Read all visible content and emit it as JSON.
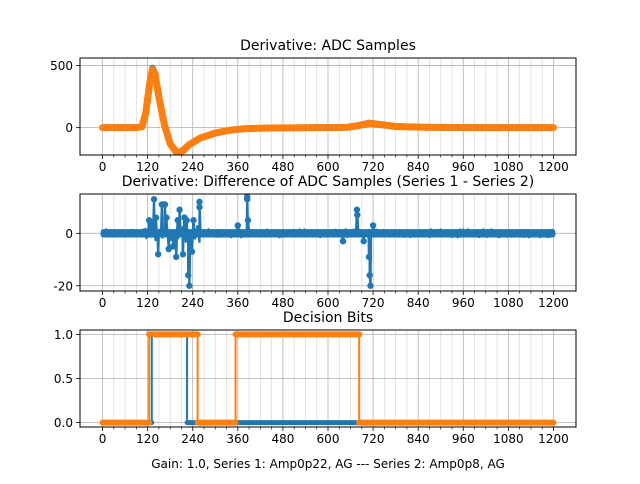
{
  "figure": {
    "xlabel": "Gain: 1.0, Series 1: Amp0p22, AG --- Series 2: Amp0p8, AG"
  },
  "colors": {
    "series1": "#1f77b4",
    "series2": "#ff7f0e",
    "grid_major": "#b0b0b0",
    "grid_minor": "#dcdcdc"
  },
  "chart_data": [
    {
      "type": "line",
      "title": "Derivative: ADC Samples",
      "xlabel": "",
      "ylabel": "",
      "xlim": [
        -60,
        1260
      ],
      "ylim": [
        -220,
        560
      ],
      "xticks": [
        0,
        120,
        240,
        360,
        480,
        600,
        720,
        840,
        960,
        1080,
        1200
      ],
      "xtick_labels": [
        "0",
        "120",
        "240",
        "360",
        "480",
        "600",
        "720",
        "840",
        "960",
        "1080",
        "1200"
      ],
      "xminor_step": 30,
      "yticks": [
        0,
        500
      ],
      "ytick_labels": [
        "0",
        "500"
      ],
      "grid": true,
      "series": [
        {
          "name": "Series 1",
          "color": "#1f77b4",
          "x": [
            0,
            90,
            105,
            115,
            125,
            133,
            140,
            150,
            165,
            180,
            195,
            205,
            215,
            230,
            260,
            300,
            340,
            380,
            450,
            560,
            650,
            680,
            710,
            740,
            780,
            850,
            1000,
            1200
          ],
          "y": [
            0,
            0,
            10,
            120,
            350,
            480,
            430,
            250,
            20,
            -130,
            -195,
            -205,
            -185,
            -140,
            -85,
            -45,
            -20,
            -8,
            -3,
            0,
            2,
            18,
            38,
            26,
            10,
            3,
            0,
            0
          ]
        },
        {
          "name": "Series 2",
          "color": "#ff7f0e",
          "x": [
            0,
            90,
            105,
            115,
            125,
            133,
            140,
            150,
            165,
            180,
            195,
            205,
            215,
            230,
            260,
            300,
            340,
            380,
            450,
            560,
            650,
            680,
            710,
            740,
            780,
            850,
            1000,
            1200
          ],
          "y": [
            0,
            0,
            8,
            115,
            345,
            470,
            425,
            245,
            18,
            -130,
            -190,
            -200,
            -182,
            -138,
            -83,
            -44,
            -20,
            -8,
            -3,
            0,
            2,
            16,
            35,
            24,
            9,
            3,
            0,
            0
          ]
        }
      ]
    },
    {
      "type": "line",
      "title": "Derivative: Difference of ADC Samples (Series 1 - Series 2)",
      "xlabel": "",
      "ylabel": "",
      "xlim": [
        -60,
        1260
      ],
      "ylim": [
        -22,
        15
      ],
      "xticks": [
        0,
        120,
        240,
        360,
        480,
        600,
        720,
        840,
        960,
        1080,
        1200
      ],
      "xtick_labels": [
        "0",
        "120",
        "240",
        "360",
        "480",
        "600",
        "720",
        "840",
        "960",
        "1080",
        "1200"
      ],
      "xminor_step": 30,
      "yticks": [
        -20,
        0
      ],
      "ytick_labels": [
        "-20",
        "0"
      ],
      "grid": true,
      "noise_amplitude": 1.5,
      "spikes": [
        {
          "x": 124,
          "y": 5
        },
        {
          "x": 130,
          "y": 4
        },
        {
          "x": 137,
          "y": 13
        },
        {
          "x": 142,
          "y": 6
        },
        {
          "x": 148,
          "y": -8
        },
        {
          "x": 158,
          "y": 11
        },
        {
          "x": 166,
          "y": 11
        },
        {
          "x": 170,
          "y": 6
        },
        {
          "x": 176,
          "y": -6
        },
        {
          "x": 188,
          "y": -5
        },
        {
          "x": 196,
          "y": -9
        },
        {
          "x": 200,
          "y": 5
        },
        {
          "x": 205,
          "y": 9
        },
        {
          "x": 214,
          "y": -8
        },
        {
          "x": 218,
          "y": 6
        },
        {
          "x": 224,
          "y": 5
        },
        {
          "x": 228,
          "y": -16
        },
        {
          "x": 231,
          "y": -20
        },
        {
          "x": 238,
          "y": -7
        },
        {
          "x": 242,
          "y": 5
        },
        {
          "x": 258,
          "y": 12
        },
        {
          "x": 258,
          "y": 10
        },
        {
          "x": 360,
          "y": 3
        },
        {
          "x": 385,
          "y": 14
        },
        {
          "x": 385,
          "y": 13
        },
        {
          "x": 387,
          "y": 5
        },
        {
          "x": 640,
          "y": -3
        },
        {
          "x": 677,
          "y": 9
        },
        {
          "x": 678,
          "y": 7
        },
        {
          "x": 695,
          "y": -3
        },
        {
          "x": 709,
          "y": -9
        },
        {
          "x": 711,
          "y": -16
        },
        {
          "x": 713,
          "y": -20
        },
        {
          "x": 720,
          "y": 3
        }
      ]
    },
    {
      "type": "line",
      "title": "Decision Bits",
      "xlabel": "Gain: 1.0, Series 1: Amp0p22, AG --- Series 2: Amp0p8, AG",
      "ylabel": "",
      "xlim": [
        -60,
        1260
      ],
      "ylim": [
        -0.05,
        1.05
      ],
      "xticks": [
        0,
        120,
        240,
        360,
        480,
        600,
        720,
        840,
        960,
        1080,
        1200
      ],
      "xtick_labels": [
        "0",
        "120",
        "240",
        "360",
        "480",
        "600",
        "720",
        "840",
        "960",
        "1080",
        "1200"
      ],
      "xminor_step": 30,
      "yticks": [
        0.0,
        0.5,
        1.0
      ],
      "ytick_labels": [
        "0.0",
        "0.5",
        "1.0"
      ],
      "grid": true,
      "series": [
        {
          "name": "Series 1",
          "color": "#1f77b4",
          "segments": [
            [
              0,
              131,
              0
            ],
            [
              131,
              225,
              1
            ],
            [
              225,
              1200,
              0
            ]
          ]
        },
        {
          "name": "Series 2",
          "color": "#ff7f0e",
          "segments": [
            [
              0,
              124,
              0
            ],
            [
              124,
              253,
              1
            ],
            [
              253,
              354,
              0
            ],
            [
              354,
              683,
              1
            ],
            [
              683,
              1200,
              0
            ]
          ]
        }
      ]
    }
  ]
}
